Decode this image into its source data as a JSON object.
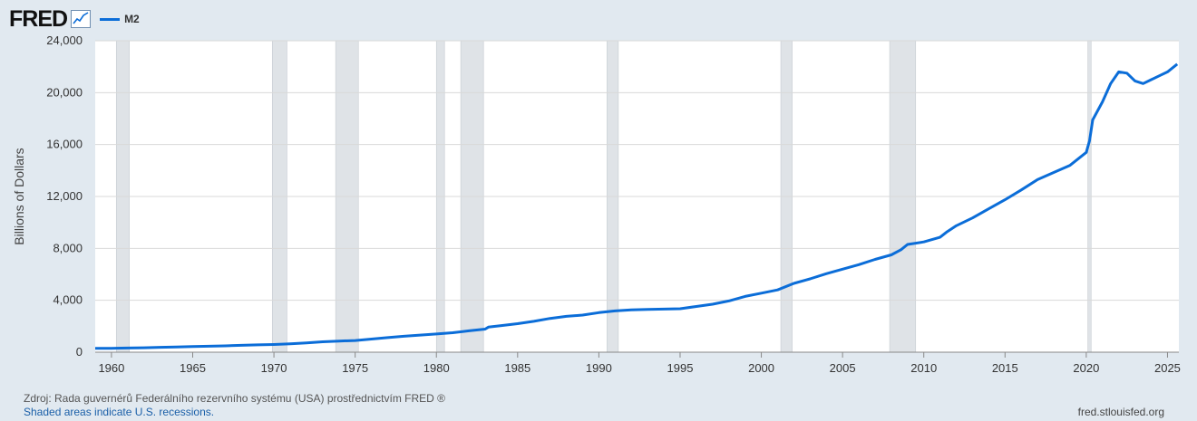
{
  "header": {
    "logo_text": "FRED",
    "logo_icon": "chart-line-icon",
    "series_label": "M2"
  },
  "colors": {
    "line": "#0b6dd8",
    "recession": "#dfe3e7",
    "background": "#e1e9f0",
    "plot": "#ffffff",
    "grid": "#d9d9d9"
  },
  "chart_data": {
    "type": "line",
    "ylabel": "Billions of Dollars",
    "xlim": [
      1959,
      2025.7
    ],
    "ylim": [
      0,
      24000
    ],
    "y_ticks": [
      "0",
      "4,000",
      "8,000",
      "12,000",
      "16,000",
      "20,000",
      "24,000"
    ],
    "x_ticks": [
      "1960",
      "1965",
      "1970",
      "1975",
      "1980",
      "1985",
      "1990",
      "1995",
      "2000",
      "2005",
      "2010",
      "2015",
      "2020",
      "2025"
    ],
    "grid": true,
    "recessions": [
      [
        1960.3,
        1961.1
      ],
      [
        1969.9,
        1970.8
      ],
      [
        1973.8,
        1975.2
      ],
      [
        1980.0,
        1980.5
      ],
      [
        1981.5,
        1982.9
      ],
      [
        1990.5,
        1991.2
      ],
      [
        2001.2,
        2001.9
      ],
      [
        2007.9,
        2009.5
      ],
      [
        2020.1,
        2020.3
      ]
    ],
    "series": [
      {
        "name": "M2",
        "points": [
          [
            1959.0,
            290
          ],
          [
            1960.0,
            300
          ],
          [
            1961.0,
            320
          ],
          [
            1962.0,
            345
          ],
          [
            1963.0,
            375
          ],
          [
            1964.0,
            405
          ],
          [
            1965.0,
            440
          ],
          [
            1966.0,
            460
          ],
          [
            1967.0,
            490
          ],
          [
            1968.0,
            530
          ],
          [
            1969.0,
            565
          ],
          [
            1970.0,
            590
          ],
          [
            1971.0,
            640
          ],
          [
            1972.0,
            710
          ],
          [
            1973.0,
            800
          ],
          [
            1974.0,
            855
          ],
          [
            1975.0,
            900
          ],
          [
            1976.0,
            1010
          ],
          [
            1977.0,
            1120
          ],
          [
            1978.0,
            1230
          ],
          [
            1979.0,
            1320
          ],
          [
            1980.0,
            1400
          ],
          [
            1981.0,
            1500
          ],
          [
            1982.0,
            1650
          ],
          [
            1983.0,
            1780
          ],
          [
            1983.2,
            1930
          ],
          [
            1984.0,
            2050
          ],
          [
            1985.0,
            2200
          ],
          [
            1986.0,
            2380
          ],
          [
            1987.0,
            2600
          ],
          [
            1988.0,
            2760
          ],
          [
            1989.0,
            2860
          ],
          [
            1990.0,
            3050
          ],
          [
            1991.0,
            3180
          ],
          [
            1992.0,
            3260
          ],
          [
            1993.0,
            3290
          ],
          [
            1994.0,
            3320
          ],
          [
            1995.0,
            3350
          ],
          [
            1996.0,
            3520
          ],
          [
            1997.0,
            3700
          ],
          [
            1998.0,
            3950
          ],
          [
            1999.0,
            4300
          ],
          [
            2000.0,
            4550
          ],
          [
            2001.0,
            4800
          ],
          [
            2002.0,
            5300
          ],
          [
            2003.0,
            5650
          ],
          [
            2004.0,
            6050
          ],
          [
            2005.0,
            6400
          ],
          [
            2006.0,
            6750
          ],
          [
            2007.0,
            7150
          ],
          [
            2008.0,
            7500
          ],
          [
            2008.6,
            7900
          ],
          [
            2009.0,
            8300
          ],
          [
            2010.0,
            8500
          ],
          [
            2011.0,
            8850
          ],
          [
            2011.4,
            9250
          ],
          [
            2012.0,
            9750
          ],
          [
            2013.0,
            10350
          ],
          [
            2014.0,
            11050
          ],
          [
            2015.0,
            11750
          ],
          [
            2016.0,
            12500
          ],
          [
            2017.0,
            13300
          ],
          [
            2018.0,
            13850
          ],
          [
            2019.0,
            14400
          ],
          [
            2020.0,
            15400
          ],
          [
            2020.2,
            16300
          ],
          [
            2020.4,
            17900
          ],
          [
            2021.0,
            19300
          ],
          [
            2021.5,
            20700
          ],
          [
            2022.0,
            21600
          ],
          [
            2022.5,
            21500
          ],
          [
            2023.0,
            20900
          ],
          [
            2023.5,
            20700
          ],
          [
            2024.0,
            21000
          ],
          [
            2024.5,
            21300
          ],
          [
            2025.0,
            21600
          ],
          [
            2025.6,
            22200
          ]
        ]
      }
    ]
  },
  "footer": {
    "source": "Zdroj: Rada guvernérů Federálního rezervního systému (USA) prostřednictvím FRED ®",
    "note": "Shaded areas indicate U.S. recessions.",
    "site": "fred.stlouisfed.org"
  }
}
